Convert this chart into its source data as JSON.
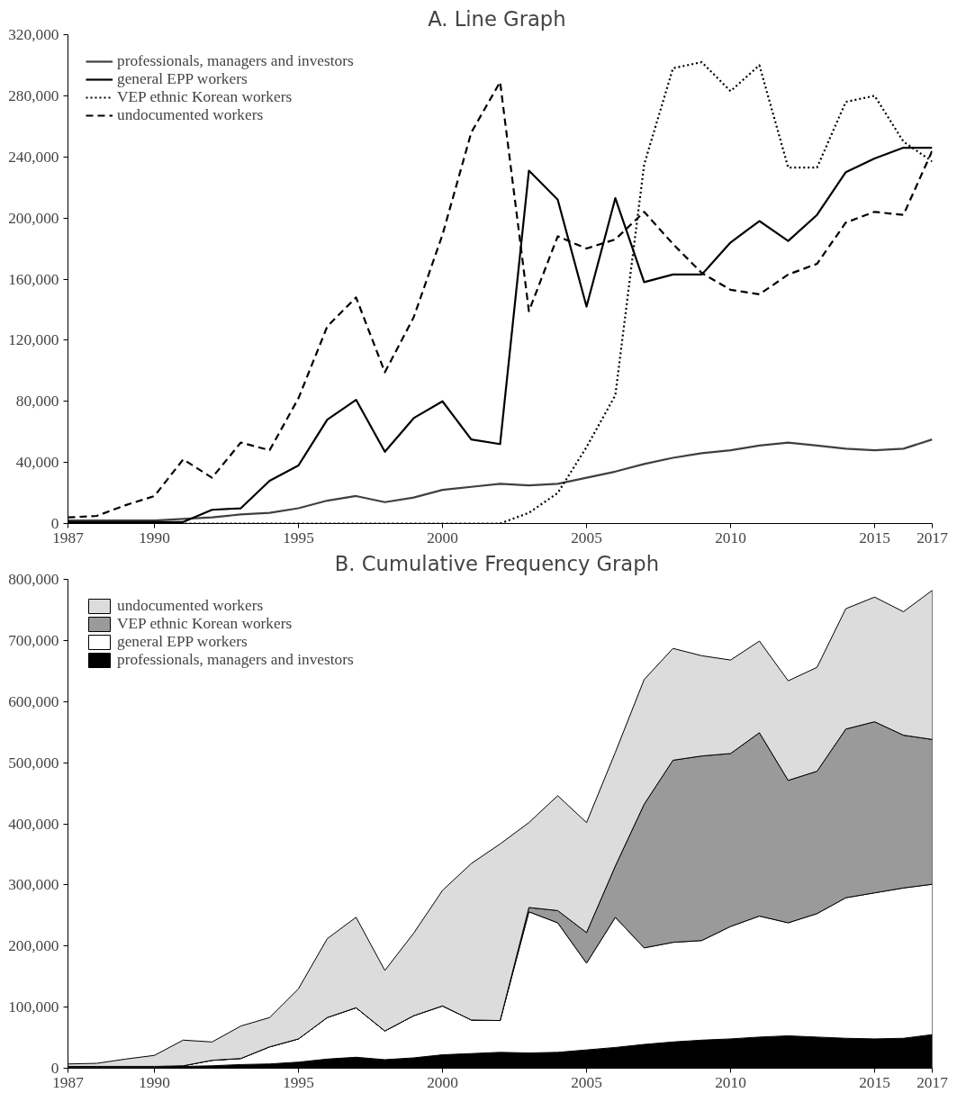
{
  "chart_data": [
    {
      "type": "line",
      "title": "A.  Line Graph",
      "x": [
        1987,
        1988,
        1989,
        1990,
        1991,
        1992,
        1993,
        1994,
        1995,
        1996,
        1997,
        1998,
        1999,
        2000,
        2001,
        2002,
        2003,
        2004,
        2005,
        2006,
        2007,
        2008,
        2009,
        2010,
        2011,
        2012,
        2013,
        2014,
        2015,
        2016,
        2017
      ],
      "series": [
        {
          "name": "professionals, managers and investors",
          "color": "#404040",
          "line_style": "solid",
          "values": [
            2000,
            2000,
            2000,
            2000,
            3000,
            4000,
            6000,
            7000,
            10000,
            15000,
            18000,
            14000,
            17000,
            22000,
            24000,
            26000,
            25000,
            26000,
            30000,
            34000,
            39000,
            43000,
            46000,
            48000,
            51000,
            53000,
            51000,
            49000,
            48000,
            49000,
            55000
          ]
        },
        {
          "name": "general EPP workers",
          "color": "#000000",
          "line_style": "solid",
          "values": [
            1000,
            1000,
            1000,
            1000,
            1000,
            9000,
            10000,
            28000,
            38000,
            68000,
            81000,
            47000,
            69000,
            80000,
            55000,
            52000,
            231000,
            212000,
            142000,
            213000,
            158000,
            163000,
            163000,
            184000,
            198000,
            185000,
            202000,
            230000,
            239000,
            246000,
            246000
          ]
        },
        {
          "name": "VEP ethnic Korean workers",
          "color": "#000000",
          "line_style": "dotted",
          "values": [
            0,
            0,
            0,
            0,
            0,
            0,
            0,
            0,
            0,
            0,
            0,
            0,
            0,
            0,
            0,
            0,
            7000,
            20000,
            50000,
            84000,
            235000,
            298000,
            302000,
            283000,
            300000,
            233000,
            233000,
            276000,
            280000,
            250000,
            237000
          ]
        },
        {
          "name": "undocumented workers",
          "color": "#000000",
          "line_style": "dashed",
          "values": [
            4000,
            5000,
            12000,
            18000,
            42000,
            30000,
            53000,
            48000,
            82000,
            129000,
            148000,
            99000,
            135000,
            189000,
            256000,
            289000,
            139000,
            188000,
            180000,
            186000,
            204000,
            183000,
            164000,
            153000,
            150000,
            163000,
            170000,
            197000,
            204000,
            202000,
            244000
          ]
        }
      ],
      "xlim": [
        1987,
        2017
      ],
      "xticks": [
        1987,
        1990,
        1995,
        2000,
        2005,
        2010,
        2015,
        2017
      ],
      "ylim": [
        0,
        320000
      ],
      "yticks": [
        {
          "value": 0,
          "label": "0"
        },
        {
          "value": 40000,
          "label": "40,000"
        },
        {
          "value": 80000,
          "label": "80,000"
        },
        {
          "value": 120000,
          "label": "120,000"
        },
        {
          "value": 160000,
          "label": "160,000"
        },
        {
          "value": 200000,
          "label": "200,000"
        },
        {
          "value": 240000,
          "label": "240,000"
        },
        {
          "value": 280000,
          "label": "280,000"
        },
        {
          "value": 320000,
          "label": "320,000"
        }
      ],
      "grid": false,
      "legend": "top left"
    },
    {
      "type": "area",
      "stacked": true,
      "title": "B.  Cumulative Frequency Graph",
      "x": [
        1987,
        1988,
        1989,
        1990,
        1991,
        1992,
        1993,
        1994,
        1995,
        1996,
        1997,
        1998,
        1999,
        2000,
        2001,
        2002,
        2003,
        2004,
        2005,
        2006,
        2007,
        2008,
        2009,
        2010,
        2011,
        2012,
        2013,
        2014,
        2015,
        2016,
        2017
      ],
      "series": [
        {
          "name": "professionals, managers and investors",
          "color": "#000000",
          "values": [
            2000,
            2000,
            2000,
            2000,
            3000,
            4000,
            6000,
            7000,
            10000,
            15000,
            18000,
            14000,
            17000,
            22000,
            24000,
            26000,
            25000,
            26000,
            30000,
            34000,
            39000,
            43000,
            46000,
            48000,
            51000,
            53000,
            51000,
            49000,
            48000,
            49000,
            55000
          ]
        },
        {
          "name": "general EPP workers",
          "color": "#ffffff",
          "values": [
            1000,
            1000,
            1000,
            1000,
            1000,
            9000,
            10000,
            28000,
            38000,
            68000,
            81000,
            47000,
            69000,
            80000,
            55000,
            52000,
            231000,
            212000,
            142000,
            213000,
            158000,
            163000,
            163000,
            184000,
            198000,
            185000,
            202000,
            230000,
            239000,
            246000,
            246000
          ]
        },
        {
          "name": "VEP ethnic Korean workers",
          "color": "#9a9a9a",
          "values": [
            0,
            0,
            0,
            0,
            0,
            0,
            0,
            0,
            0,
            0,
            0,
            0,
            0,
            0,
            0,
            0,
            7000,
            20000,
            50000,
            84000,
            235000,
            298000,
            302000,
            283000,
            300000,
            233000,
            233000,
            276000,
            280000,
            250000,
            237000
          ]
        },
        {
          "name": "undocumented workers",
          "color": "#dcdcdc",
          "values": [
            4000,
            5000,
            12000,
            18000,
            42000,
            30000,
            53000,
            48000,
            82000,
            129000,
            148000,
            99000,
            135000,
            189000,
            256000,
            289000,
            139000,
            188000,
            180000,
            186000,
            204000,
            183000,
            164000,
            153000,
            150000,
            163000,
            170000,
            197000,
            204000,
            202000,
            244000
          ]
        }
      ],
      "xlim": [
        1987,
        2017
      ],
      "xticks": [
        1987,
        1990,
        1995,
        2000,
        2005,
        2010,
        2015,
        2017
      ],
      "ylim": [
        0,
        800000
      ],
      "yticks": [
        {
          "value": 0,
          "label": "0"
        },
        {
          "value": 100000,
          "label": "100,000"
        },
        {
          "value": 200000,
          "label": "200,000"
        },
        {
          "value": 300000,
          "label": "300,000"
        },
        {
          "value": 400000,
          "label": "400,000"
        },
        {
          "value": 500000,
          "label": "500,000"
        },
        {
          "value": 600000,
          "label": "600,000"
        },
        {
          "value": 700000,
          "label": "700,000"
        },
        {
          "value": 800000,
          "label": "800,000"
        }
      ],
      "grid": false,
      "legend": "top left"
    }
  ]
}
